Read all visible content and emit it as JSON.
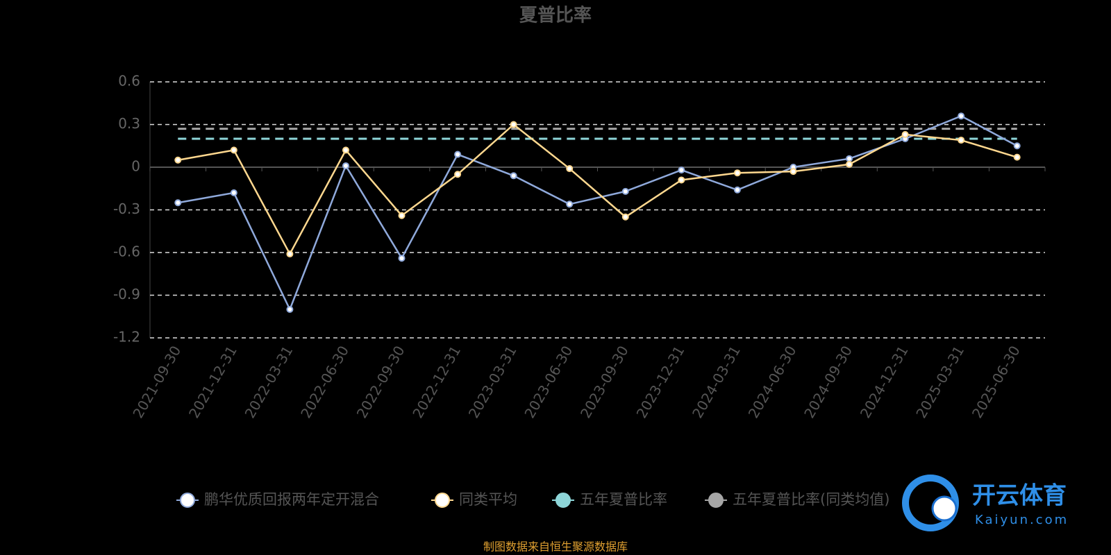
{
  "chart_data": {
    "type": "line",
    "title": "夏普比率",
    "categories": [
      "2021-09-30",
      "2021-12-31",
      "2022-03-31",
      "2022-06-30",
      "2022-09-30",
      "2022-12-31",
      "2023-03-31",
      "2023-06-30",
      "2023-09-30",
      "2023-12-31",
      "2024-03-31",
      "2024-06-30",
      "2024-09-30",
      "2024-12-31",
      "2025-03-31",
      "2025-06-30"
    ],
    "series": [
      {
        "name": "鹏华优质回报两年定开混合",
        "color": "#8fa9db",
        "markers": true,
        "dashed": false,
        "values": [
          -0.25,
          -0.18,
          -1.0,
          0.01,
          -0.64,
          0.09,
          -0.06,
          -0.26,
          -0.17,
          -0.02,
          -0.16,
          0.0,
          0.06,
          0.2,
          0.36,
          0.15
        ]
      },
      {
        "name": "同类平均",
        "color": "#ffd88f",
        "markers": true,
        "dashed": false,
        "values": [
          0.05,
          0.12,
          -0.61,
          0.12,
          -0.34,
          -0.05,
          0.3,
          -0.01,
          -0.35,
          -0.09,
          -0.04,
          -0.03,
          0.02,
          0.23,
          0.19,
          0.07
        ]
      },
      {
        "name": "五年夏普比率",
        "color": "#8ed6d9",
        "markers": false,
        "dashed": true,
        "values": [
          0.2,
          0.2,
          0.2,
          0.2,
          0.2,
          0.2,
          0.2,
          0.2,
          0.2,
          0.2,
          0.2,
          0.2,
          0.2,
          0.2,
          0.2,
          0.2
        ]
      },
      {
        "name": "五年夏普比率(同类均值)",
        "color": "#a6a6a6",
        "markers": false,
        "dashed": true,
        "values": [
          0.27,
          0.27,
          0.27,
          0.27,
          0.27,
          0.27,
          0.27,
          0.27,
          0.27,
          0.27,
          0.27,
          0.27,
          0.27,
          0.27,
          0.27,
          0.27
        ]
      }
    ],
    "ylim": [
      -1.2,
      0.6
    ],
    "yticks": [
      -1.2,
      -0.9,
      -0.6,
      -0.3,
      0,
      0.3,
      0.6
    ],
    "grid": true,
    "legend": "bottom",
    "source": "制图数据来自恒生聚源数据库",
    "watermark": {
      "text": "开云体育",
      "url": "Kaiyun.com"
    }
  }
}
